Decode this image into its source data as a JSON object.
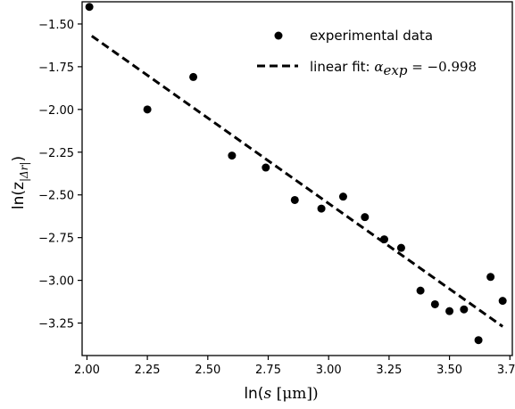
{
  "chart_data": {
    "type": "scatter",
    "xlabel_prefix": "ln(",
    "xlabel_var": "s",
    "xlabel_unit": " [μm])",
    "ylabel_text": "ln(z",
    "ylabel_sub": "|Δr|",
    "ylabel_close": ")",
    "xlim": [
      1.98,
      3.76
    ],
    "ylim": [
      -3.44,
      -1.37
    ],
    "xticks": [
      2.0,
      2.25,
      2.5,
      2.75,
      3.0,
      3.25,
      3.5,
      3.75
    ],
    "xtick_labels": [
      "2.00",
      "2.25",
      "2.50",
      "2.75",
      "3.00",
      "3.25",
      "3.50",
      "3.75"
    ],
    "yticks": [
      -1.5,
      -1.75,
      -2.0,
      -2.25,
      -2.5,
      -2.75,
      -3.0,
      -3.25
    ],
    "ytick_labels": [
      "−1.50",
      "−1.75",
      "−2.00",
      "−2.25",
      "−2.50",
      "−2.75",
      "−3.00",
      "−3.25"
    ],
    "grid": false,
    "legend_position": "top-right",
    "series": [
      {
        "name": "experimental data",
        "kind": "points",
        "color": "#000000",
        "x": [
          2.01,
          2.25,
          2.44,
          2.6,
          2.74,
          2.86,
          2.97,
          3.06,
          3.15,
          3.23,
          3.3,
          3.38,
          3.44,
          3.5,
          3.56,
          3.62,
          3.67,
          3.72
        ],
        "y": [
          -1.4,
          -2.0,
          -1.81,
          -2.27,
          -2.34,
          -2.53,
          -2.58,
          -2.51,
          -2.63,
          -2.76,
          -2.81,
          -3.06,
          -3.14,
          -3.18,
          -3.17,
          -3.35,
          -2.98,
          -3.12
        ]
      },
      {
        "name": "linear fit: ",
        "name_math_symbol": "α",
        "name_math_sub": "exp",
        "name_math_value": " = −0.998",
        "kind": "line",
        "style": "dashed",
        "color": "#000000",
        "x": [
          2.02,
          3.72
        ],
        "y": [
          -1.57,
          -3.27
        ]
      }
    ]
  }
}
